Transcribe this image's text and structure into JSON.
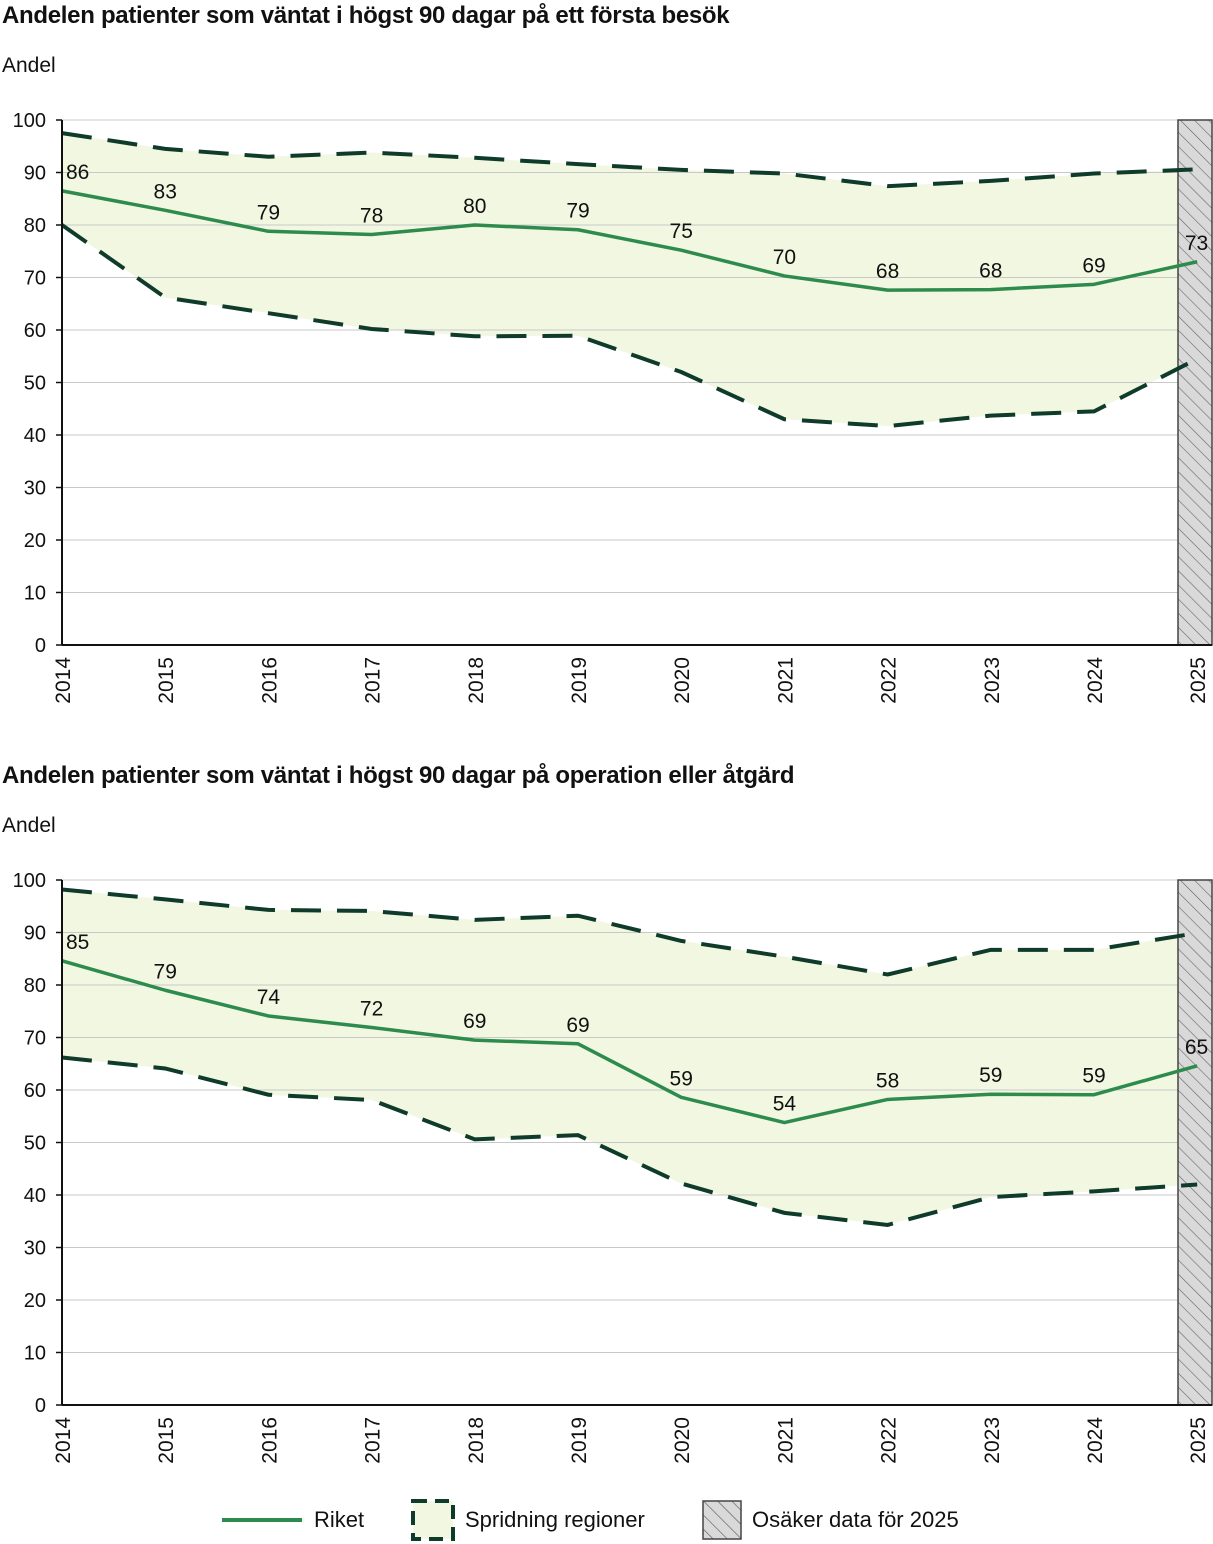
{
  "charts": [
    {
      "title": "Andelen patienter som väntat i högst 90 dagar på ett första besök",
      "ylabel": "Andel"
    },
    {
      "title": "Andelen patienter som väntat i högst 90 dagar på operation eller åtgärd",
      "ylabel": "Andel"
    }
  ],
  "legend": {
    "riket": "Riket",
    "spridning": "Spridning regioner",
    "osaker": "Osäker data för 2025"
  },
  "colors": {
    "riket": "#2e8b4e",
    "spridning_line": "#0f3b2a",
    "spridning_fill": "#f2f7e1",
    "hatch_bg": "#d9d9d9",
    "grid": "#c8c8c8"
  },
  "chart_data": [
    {
      "type": "line",
      "title": "Andelen patienter som väntat i högst 90 dagar på ett första besök",
      "ylabel": "Andel",
      "xlabel": "",
      "categories": [
        "2014",
        "2015",
        "2016",
        "2017",
        "2018",
        "2019",
        "2020",
        "2021",
        "2022",
        "2023",
        "2024",
        "2025"
      ],
      "ylim": [
        0,
        100
      ],
      "yticks": [
        0,
        10,
        20,
        30,
        40,
        50,
        60,
        70,
        80,
        90,
        100
      ],
      "grid": true,
      "uncertain_category": "2025",
      "series": [
        {
          "name": "Riket",
          "style": "solid",
          "values": [
            86.5,
            82.8,
            78.8,
            78.2,
            80,
            79.1,
            75.2,
            70.3,
            67.6,
            67.7,
            68.7,
            73
          ],
          "labels": [
            "86",
            "83",
            "79",
            "78",
            "80",
            "79",
            "75",
            "70",
            "68",
            "68",
            "69",
            "73"
          ]
        },
        {
          "name": "Spridning regioner",
          "style": "dashed-upper",
          "values": [
            97.5,
            94.5,
            93,
            93.8,
            92.8,
            91.6,
            90.5,
            89.8,
            87.4,
            88.4,
            89.8,
            90.6
          ]
        },
        {
          "name": "Spridning regioner",
          "style": "dashed-lower",
          "values": [
            80,
            66.2,
            63.2,
            60.2,
            58.8,
            58.9,
            52,
            43,
            41.7,
            43.7,
            44.5,
            54.5
          ]
        }
      ]
    },
    {
      "type": "line",
      "title": "Andelen patienter som väntat i högst 90 dagar på operation eller åtgärd",
      "ylabel": "Andel",
      "xlabel": "",
      "categories": [
        "2014",
        "2015",
        "2016",
        "2017",
        "2018",
        "2019",
        "2020",
        "2021",
        "2022",
        "2023",
        "2024",
        "2025"
      ],
      "ylim": [
        0,
        100
      ],
      "yticks": [
        0,
        10,
        20,
        30,
        40,
        50,
        60,
        70,
        80,
        90,
        100
      ],
      "grid": true,
      "uncertain_category": "2025",
      "series": [
        {
          "name": "Riket",
          "style": "solid",
          "values": [
            84.6,
            79,
            74.1,
            71.9,
            69.5,
            68.8,
            58.6,
            53.8,
            58.2,
            59.2,
            59.1,
            64.6
          ],
          "labels": [
            "85",
            "79",
            "74",
            "72",
            "69",
            "69",
            "59",
            "54",
            "58",
            "59",
            "59",
            "65"
          ]
        },
        {
          "name": "Spridning regioner",
          "style": "dashed-upper",
          "values": [
            98.2,
            96.3,
            94.3,
            94.1,
            92.4,
            93.2,
            88.4,
            85.4,
            82,
            86.7,
            86.7,
            89.9
          ]
        },
        {
          "name": "Spridning regioner",
          "style": "dashed-lower",
          "values": [
            66.2,
            64.1,
            59.1,
            58.1,
            50.6,
            51.4,
            42.2,
            36.6,
            34.3,
            39.6,
            40.7,
            42
          ]
        }
      ]
    }
  ]
}
